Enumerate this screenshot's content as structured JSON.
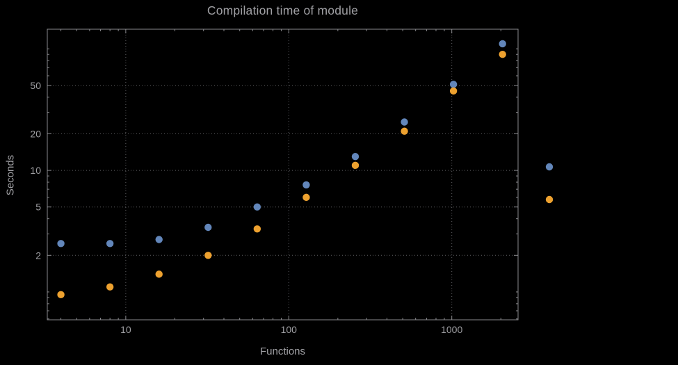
{
  "page": {
    "background": "#000000"
  },
  "chart_data": {
    "type": "scatter",
    "title": "Compilation time of module",
    "xlabel": "Functions",
    "ylabel": "Seconds",
    "xscale": "log",
    "yscale": "log",
    "xlim": [
      3.3,
      2550
    ],
    "ylim": [
      0.59,
      145
    ],
    "xticks": [
      10,
      100,
      1000
    ],
    "yticks": [
      2,
      5,
      10,
      20,
      50
    ],
    "grid": true,
    "grid_style": "dotted",
    "frame": true,
    "legend_position": "outside-right",
    "colors": {
      "text": "#a0a0a4",
      "grid": "#5f5f63",
      "frame": "#8a8a8e",
      "background": "#000000"
    },
    "series": [
      {
        "name": "blue",
        "color": "#6286ba",
        "x": [
          4,
          8,
          16,
          32,
          64,
          128,
          256,
          512,
          1024,
          2048
        ],
        "y": [
          2.5,
          2.5,
          2.7,
          3.4,
          5.0,
          7.6,
          13,
          25,
          51,
          110
        ]
      },
      {
        "name": "orange",
        "color": "#eda12f",
        "x": [
          4,
          8,
          16,
          32,
          64,
          128,
          256,
          512,
          1024,
          2048
        ],
        "y": [
          0.95,
          1.1,
          1.4,
          2.0,
          3.3,
          6.0,
          11,
          21,
          45,
          90
        ]
      }
    ]
  }
}
